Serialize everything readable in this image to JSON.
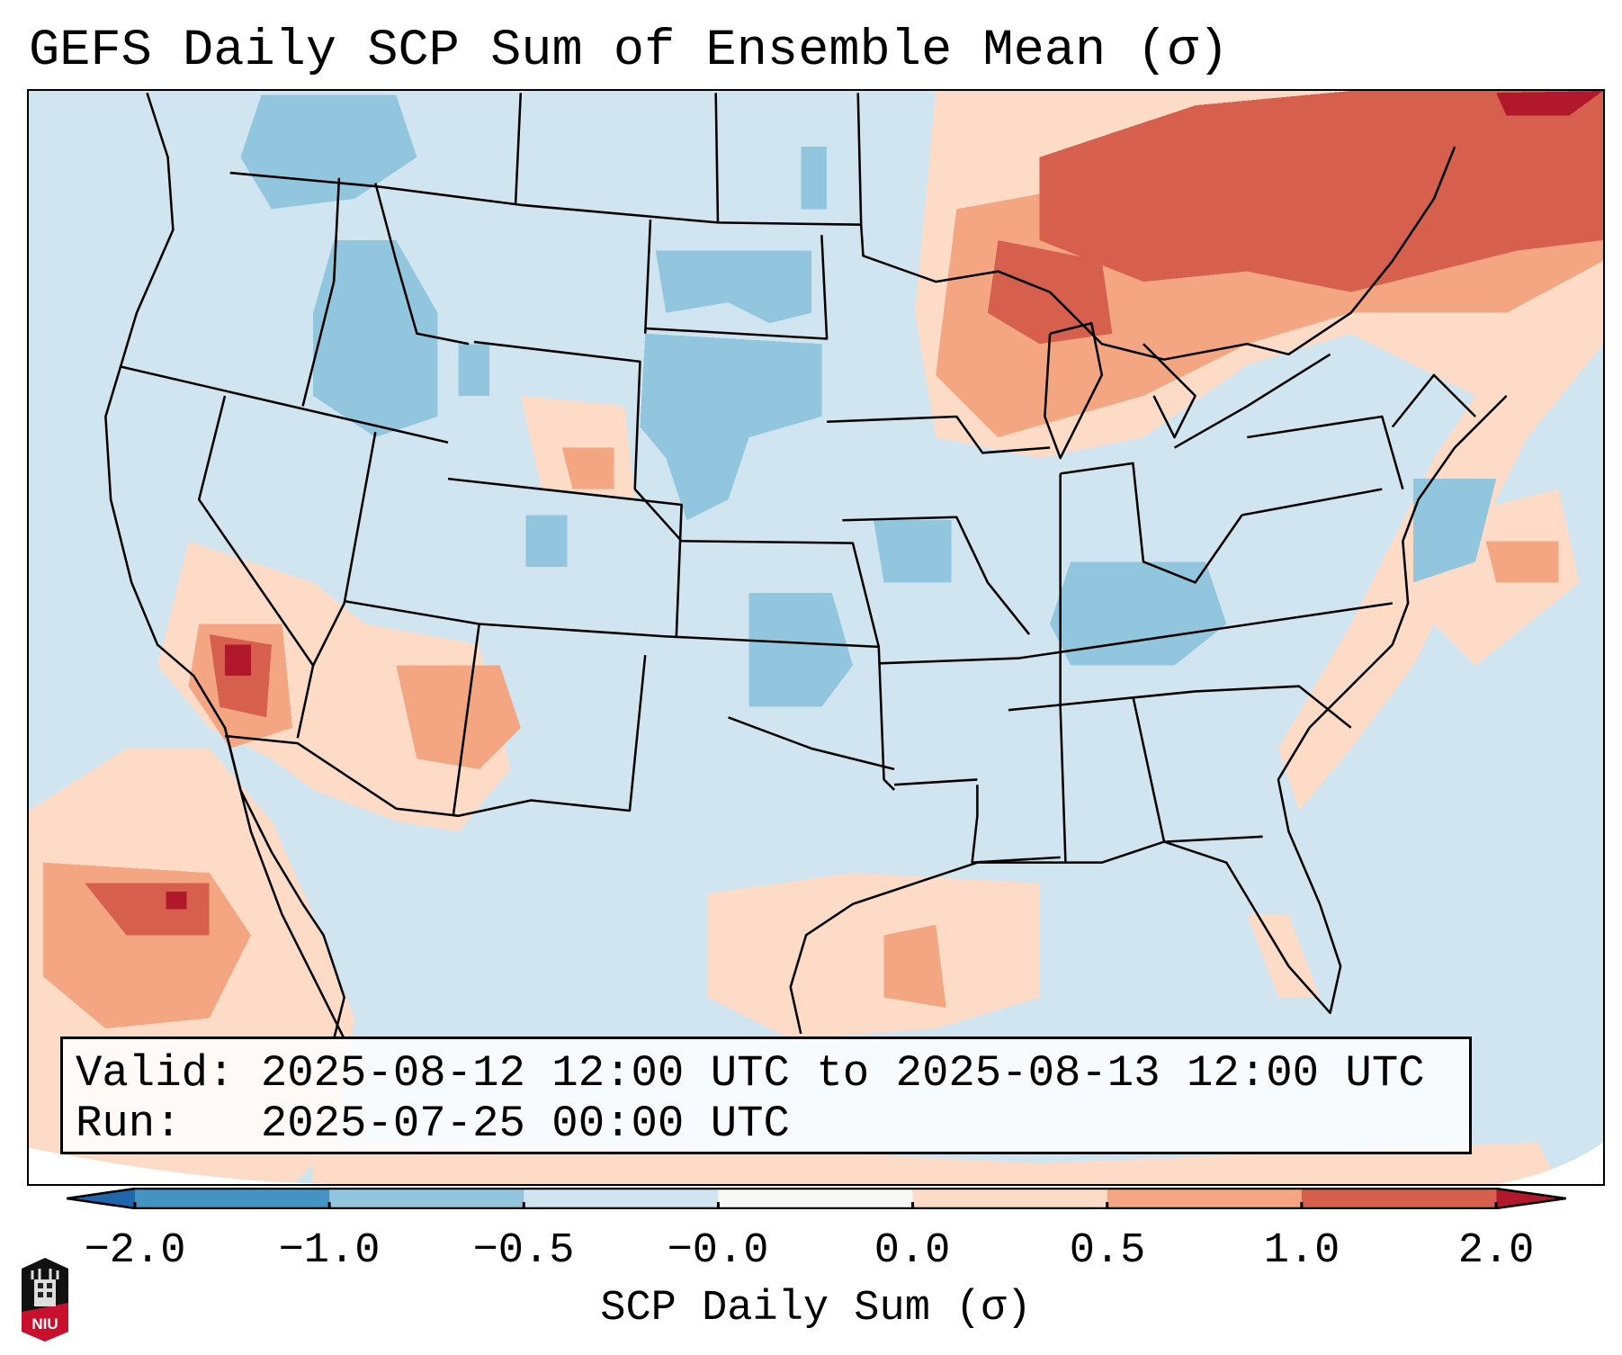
{
  "title": "GEFS Daily SCP Sum of Ensemble Mean (σ)",
  "info": {
    "valid": "Valid: 2025-08-12 12:00 UTC to 2025-08-13 12:00 UTC",
    "run": "Run:   2025-07-25 00:00 UTC"
  },
  "colorbar": {
    "label": "SCP Daily Sum (σ)",
    "ticks": [
      "−2.0",
      "−1.0",
      "−0.5",
      "−0.0",
      "0.0",
      "0.5",
      "1.0",
      "2.0"
    ],
    "colors": [
      "#4393c3",
      "#92c5de",
      "#d1e5f0",
      "#f7f7f7",
      "#fddbc7",
      "#f4a582",
      "#d6604d"
    ],
    "extend_low_color": "#2166ac",
    "extend_high_color": "#b2182b"
  },
  "logo": {
    "text": "NIU"
  }
}
